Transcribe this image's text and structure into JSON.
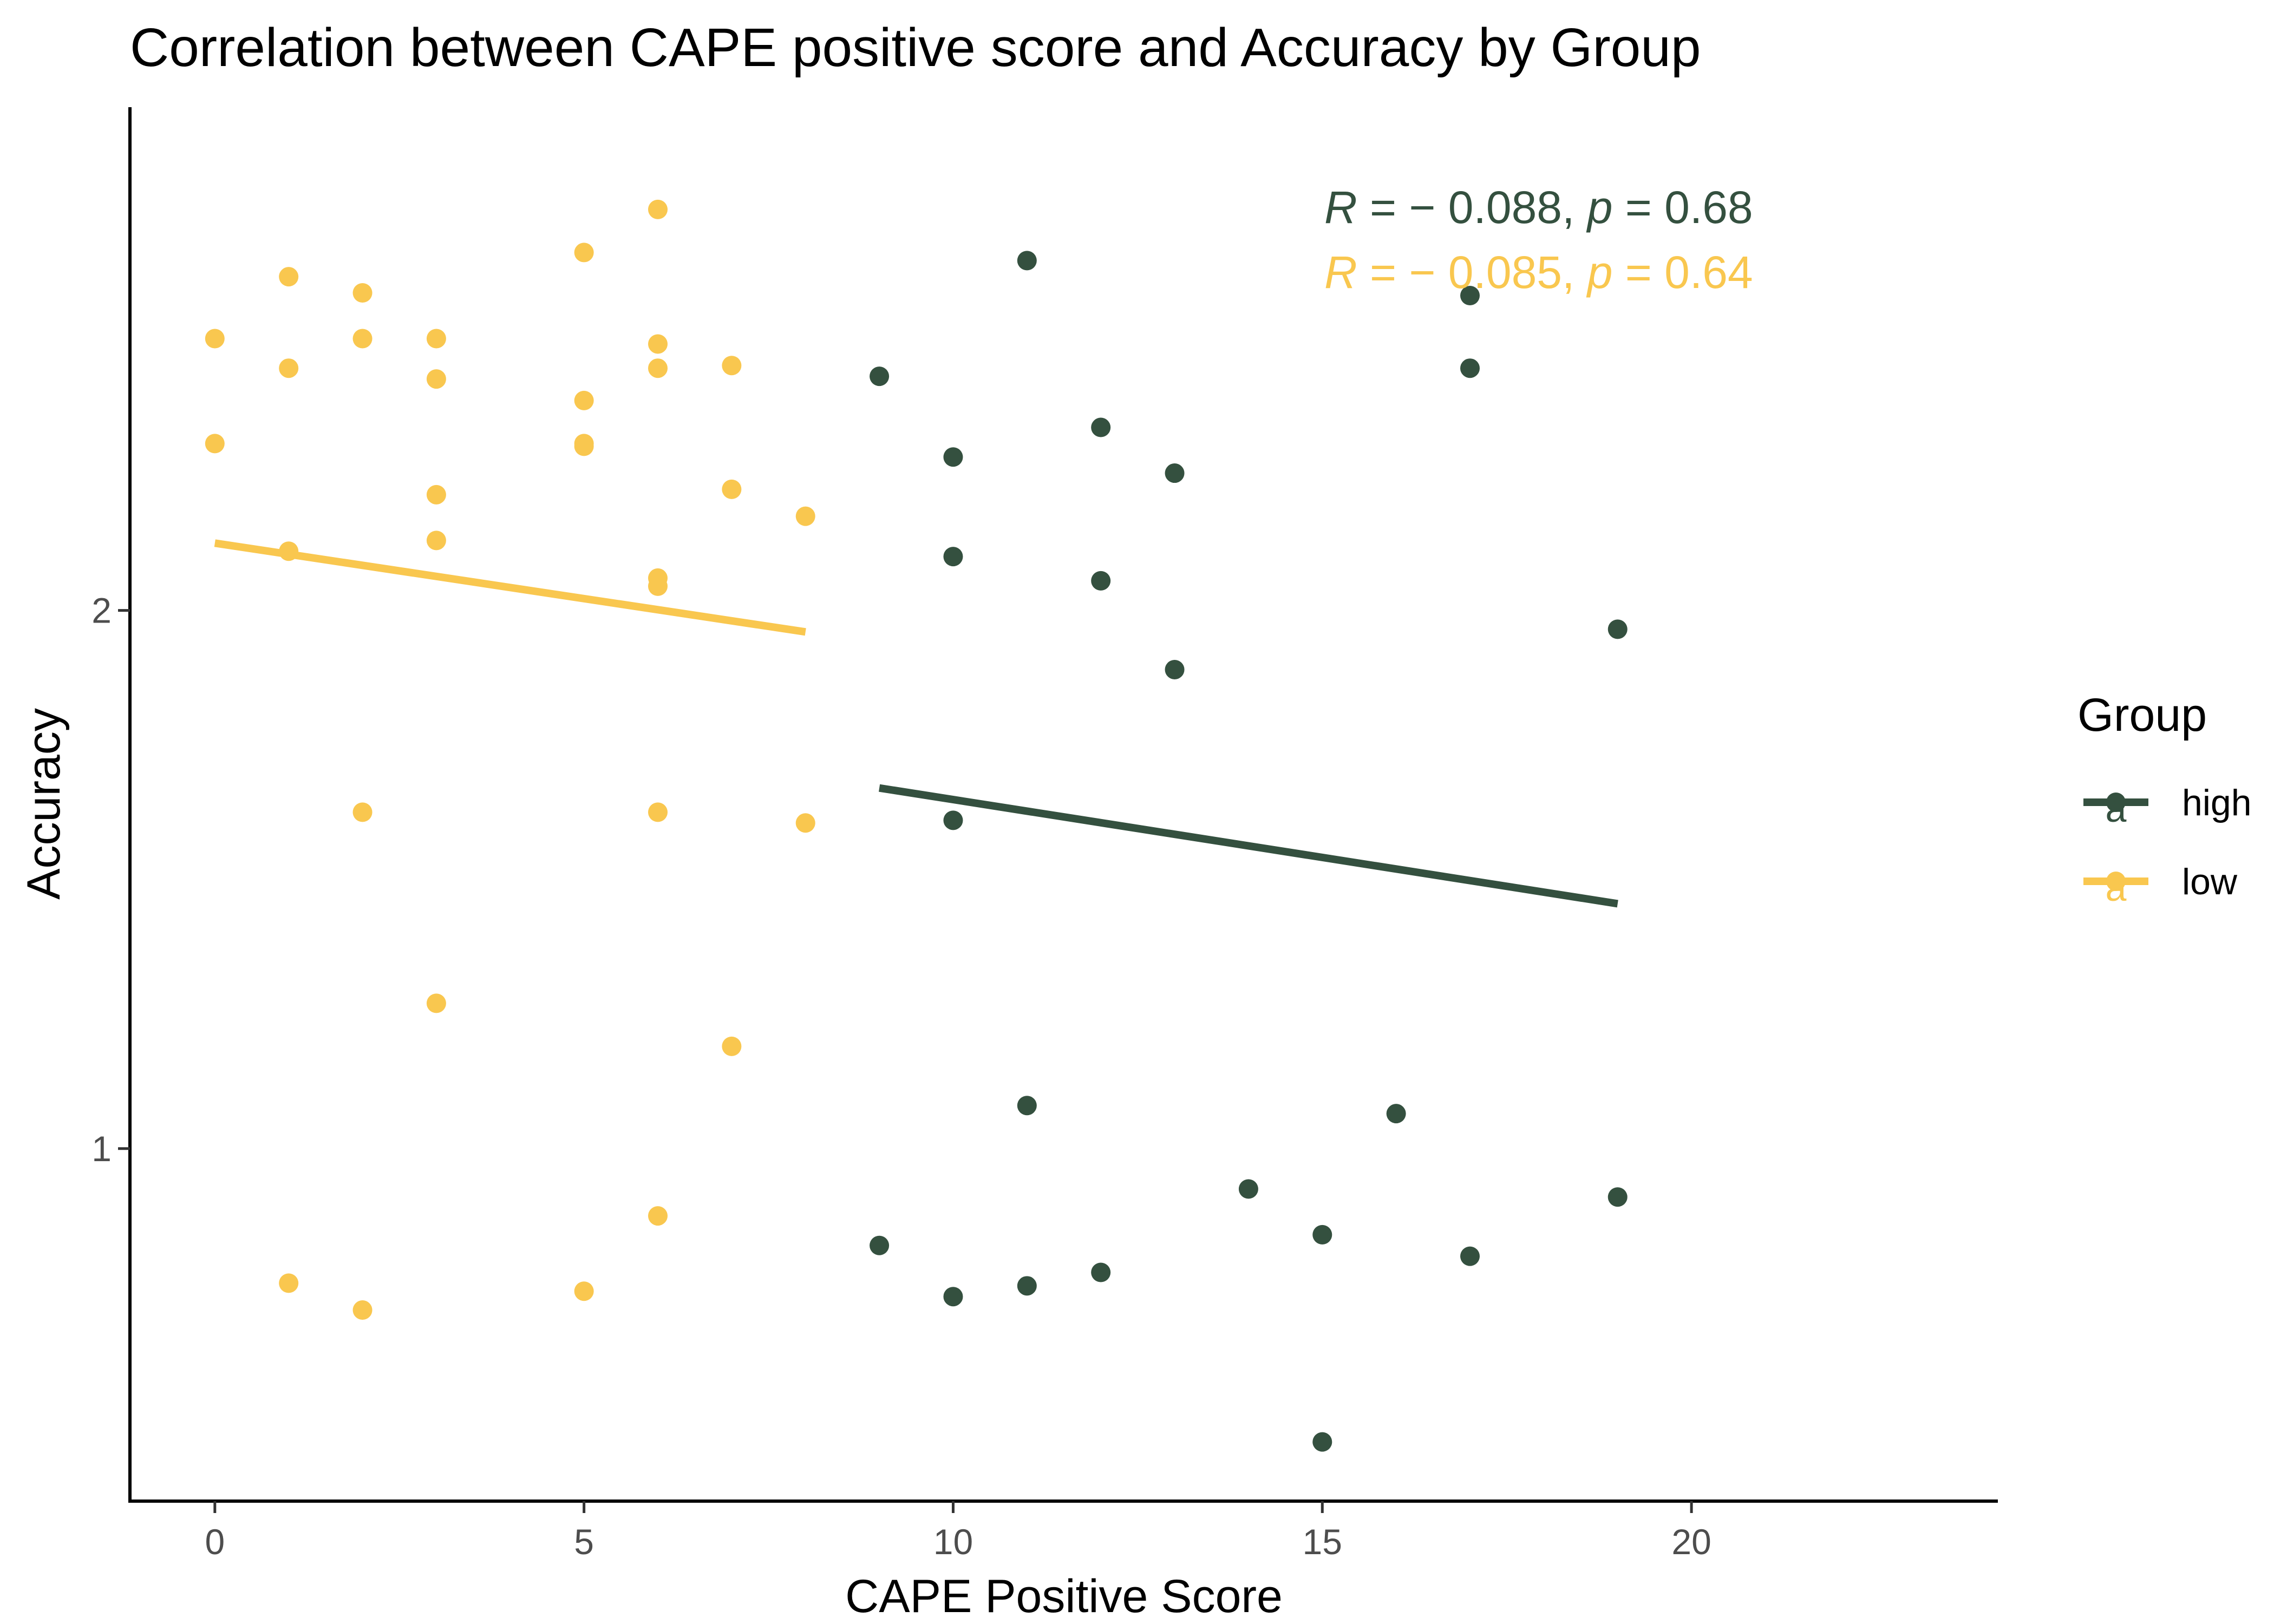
{
  "chart_data": {
    "type": "scatter",
    "title": "Correlation between CAPE positive score and Accuracy by Group",
    "xlabel": "CAPE Positive Score",
    "ylabel": "Accuracy",
    "xlim": [
      -1.15,
      24.15
    ],
    "ylim": [
      0.345,
      2.935
    ],
    "x_ticks": [
      0,
      5,
      10,
      15,
      20
    ],
    "y_ticks": [
      1,
      2
    ],
    "grid": false,
    "legend": {
      "title": "Group",
      "placement": "right",
      "key_glyph_text": "a"
    },
    "series": [
      {
        "name": "high",
        "color": "#34503f",
        "stat_label": {
          "r_sym": "R",
          "r_val": " = − 0.088, ",
          "p_sym": "p",
          "p_val": " = 0.68"
        },
        "fit": {
          "x": [
            9,
            19
          ],
          "y": [
            1.67,
            1.455
          ]
        },
        "points": [
          {
            "x": 9,
            "y": 2.435
          },
          {
            "x": 9,
            "y": 0.82
          },
          {
            "x": 10,
            "y": 2.285
          },
          {
            "x": 10,
            "y": 2.1
          },
          {
            "x": 10,
            "y": 1.61
          },
          {
            "x": 10,
            "y": 0.725
          },
          {
            "x": 11,
            "y": 2.65
          },
          {
            "x": 11,
            "y": 1.08
          },
          {
            "x": 11,
            "y": 0.745
          },
          {
            "x": 12,
            "y": 2.34
          },
          {
            "x": 12,
            "y": 2.055
          },
          {
            "x": 12,
            "y": 0.77
          },
          {
            "x": 13,
            "y": 2.255
          },
          {
            "x": 13,
            "y": 1.89
          },
          {
            "x": 14,
            "y": 0.925
          },
          {
            "x": 15,
            "y": 0.84
          },
          {
            "x": 15,
            "y": 0.455
          },
          {
            "x": 16,
            "y": 1.065
          },
          {
            "x": 17,
            "y": 2.585
          },
          {
            "x": 17,
            "y": 2.45
          },
          {
            "x": 17,
            "y": 0.8
          },
          {
            "x": 19,
            "y": 1.965
          },
          {
            "x": 19,
            "y": 0.91
          }
        ]
      },
      {
        "name": "low",
        "color": "#f9c74f",
        "stat_label": {
          "r_sym": "R",
          "r_val": " = − 0.085, ",
          "p_sym": "p",
          "p_val": " = 0.64"
        },
        "fit": {
          "x": [
            0,
            8
          ],
          "y": [
            2.125,
            1.96
          ]
        },
        "points": [
          {
            "x": 0,
            "y": 2.505
          },
          {
            "x": 0,
            "y": 2.31
          },
          {
            "x": 1,
            "y": 2.62
          },
          {
            "x": 1,
            "y": 2.45
          },
          {
            "x": 1,
            "y": 2.11
          },
          {
            "x": 1,
            "y": 0.75
          },
          {
            "x": 2,
            "y": 2.59
          },
          {
            "x": 2,
            "y": 2.505
          },
          {
            "x": 2,
            "y": 1.625
          },
          {
            "x": 2,
            "y": 0.7
          },
          {
            "x": 3,
            "y": 2.505
          },
          {
            "x": 3,
            "y": 2.43
          },
          {
            "x": 3,
            "y": 2.215
          },
          {
            "x": 3,
            "y": 2.13
          },
          {
            "x": 3,
            "y": 1.27
          },
          {
            "x": 5,
            "y": 2.665
          },
          {
            "x": 5,
            "y": 2.39
          },
          {
            "x": 5,
            "y": 2.31
          },
          {
            "x": 5,
            "y": 2.305
          },
          {
            "x": 5,
            "y": 0.735
          },
          {
            "x": 6,
            "y": 2.745
          },
          {
            "x": 6,
            "y": 2.495
          },
          {
            "x": 6,
            "y": 2.45
          },
          {
            "x": 6,
            "y": 2.06
          },
          {
            "x": 6,
            "y": 2.045
          },
          {
            "x": 6,
            "y": 1.625
          },
          {
            "x": 6,
            "y": 0.875
          },
          {
            "x": 7,
            "y": 2.455
          },
          {
            "x": 7,
            "y": 2.225
          },
          {
            "x": 7,
            "y": 1.19
          },
          {
            "x": 8,
            "y": 2.175
          },
          {
            "x": 8,
            "y": 1.605
          }
        ]
      }
    ]
  }
}
